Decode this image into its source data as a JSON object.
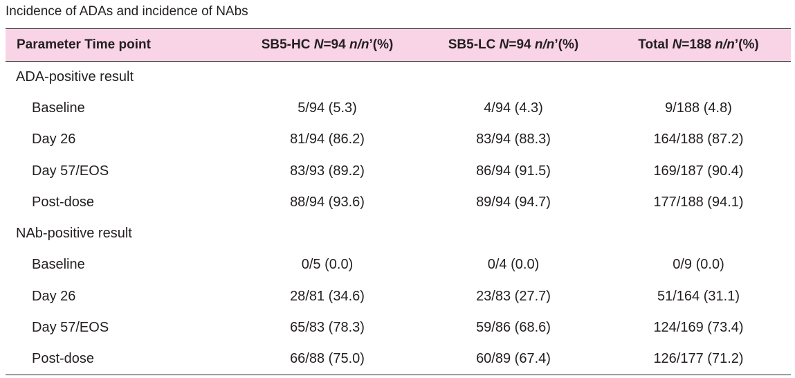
{
  "caption": "Incidence of ADAs and incidence of NAbs",
  "header": {
    "col0": "Parameter Time point",
    "col1": {
      "a": "SB5-HC ",
      "n_it": "N",
      "b": "=94  ",
      "nn_it": "n/n",
      "c": "’(%)"
    },
    "col2": {
      "a": "SB5-LC ",
      "n_it": "N",
      "b": "=94  ",
      "nn_it": "n/n",
      "c": "’(%)"
    },
    "col3": {
      "a": "Total ",
      "n_it": "N",
      "b": "=188 ",
      "nn_it": "n/n",
      "c": "’(%)"
    }
  },
  "sections": [
    {
      "title": "ADA-positive result",
      "rows": [
        {
          "label": "Baseline",
          "hc": "5/94 (5.3)",
          "lc": "4/94 (4.3)",
          "total": "9/188 (4.8)"
        },
        {
          "label": "Day 26",
          "hc": "81/94 (86.2)",
          "lc": "83/94 (88.3)",
          "total": "164/188 (87.2)"
        },
        {
          "label": "Day 57/EOS",
          "hc": "83/93 (89.2)",
          "lc": "86/94 (91.5)",
          "total": "169/187 (90.4)"
        },
        {
          "label": "Post-dose",
          "hc": "88/94 (93.6)",
          "lc": "89/94 (94.7)",
          "total": "177/188 (94.1)"
        }
      ]
    },
    {
      "title": "NAb-positive result",
      "rows": [
        {
          "label": "Baseline",
          "hc": "0/5 (0.0)",
          "lc": "0/4 (0.0)",
          "total": "0/9 (0.0)"
        },
        {
          "label": "Day 26",
          "hc": "28/81 (34.6)",
          "lc": "23/83 (27.7)",
          "total": "51/164 (31.1)"
        },
        {
          "label": "Day 57/EOS",
          "hc": "65/83 (78.3)",
          "lc": "59/86 (68.6)",
          "total": "124/169 (73.4)"
        },
        {
          "label": "Post-dose",
          "hc": "66/88 (75.0)",
          "lc": "60/89 (67.4)",
          "total": "126/177 (71.2)"
        }
      ]
    }
  ]
}
